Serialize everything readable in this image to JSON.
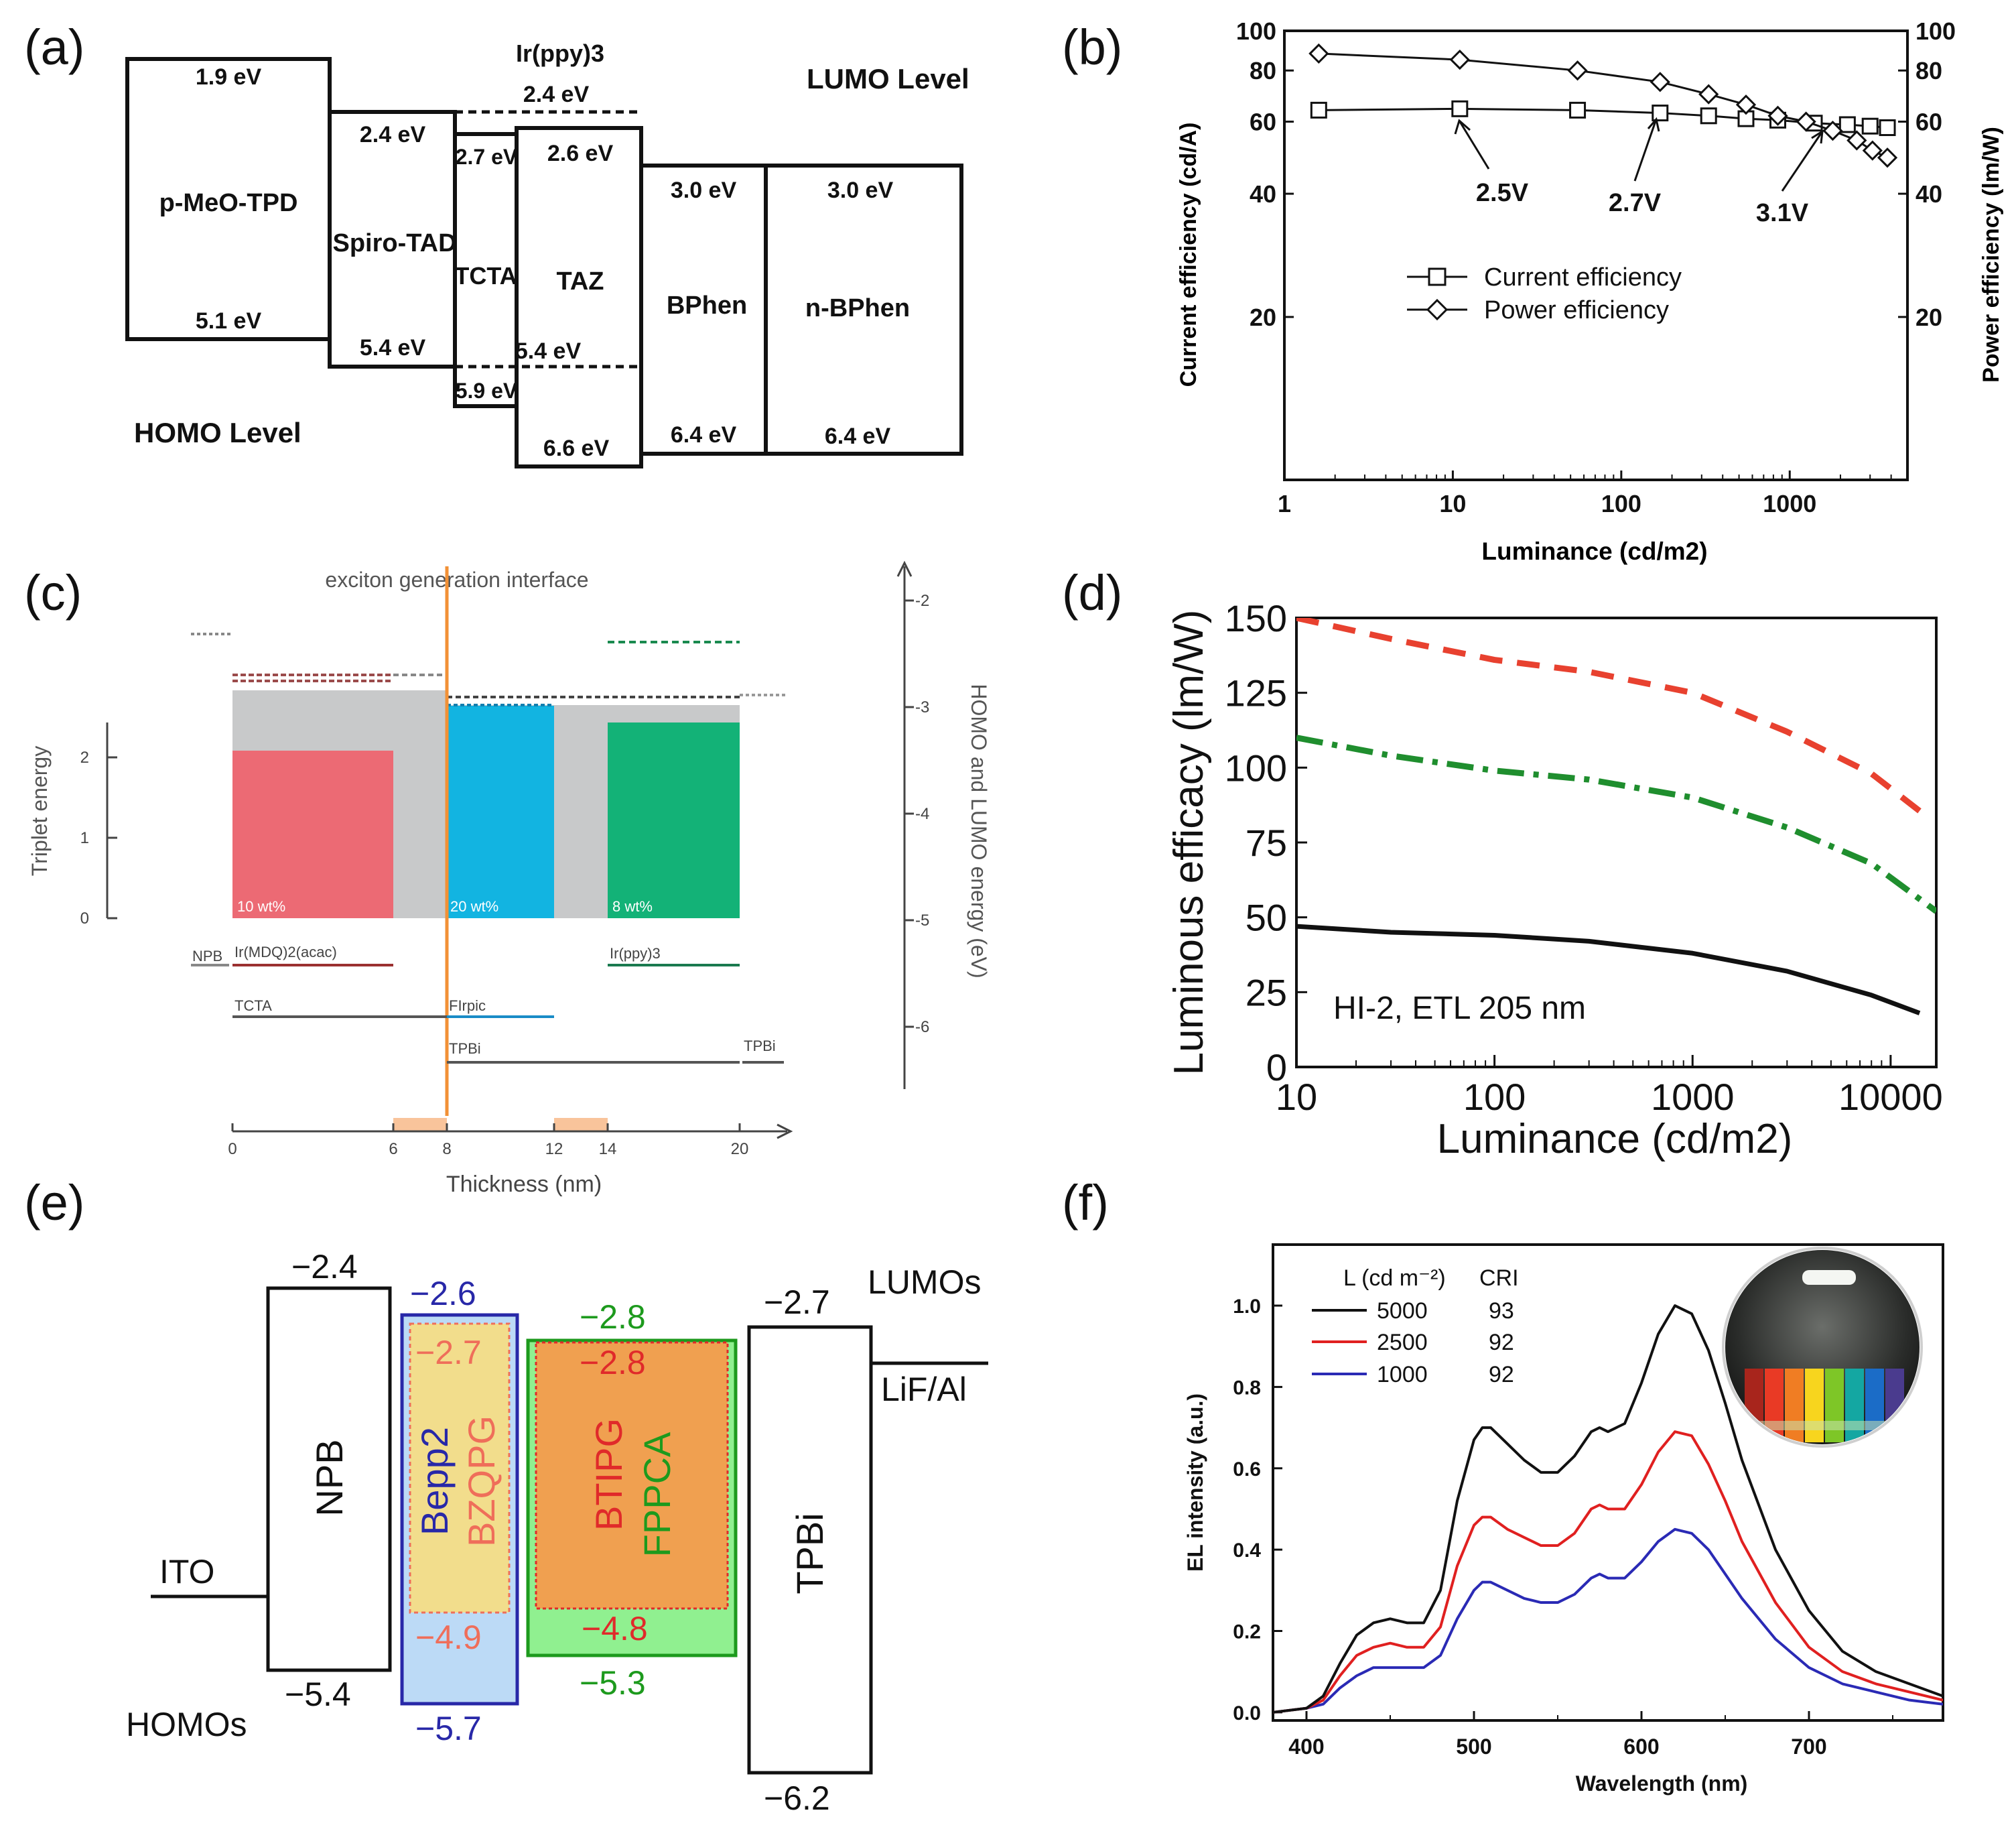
{
  "figure": {
    "panel_labels": [
      "(a)",
      "(b)",
      "(c)",
      "(d)",
      "(e)",
      "(f)"
    ]
  },
  "chart_data": [
    {
      "panel": "(a)",
      "type": "energy-level-diagram",
      "lumo_title": "LUMO Level",
      "homo_title": "HOMO Level",
      "layers": [
        {
          "name": "p-MeO-TPD",
          "lumo": "1.9 eV",
          "homo": "5.1 eV"
        },
        {
          "name": "Spiro-TAD",
          "lumo": "2.4 eV",
          "homo": "5.4 eV"
        },
        {
          "name": "TCTA",
          "lumo": "2.7 eV",
          "homo": "5.9 eV"
        },
        {
          "name": "TAZ",
          "lumo": "2.6 eV",
          "homo": "6.6 eV"
        },
        {
          "name": "BPhen",
          "lumo": "3.0 eV",
          "homo": "6.4 eV"
        },
        {
          "name": "n-BPhen",
          "lumo": "3.0 eV",
          "homo": "6.4 eV"
        }
      ],
      "dopant": {
        "name": "Ir(ppy)3",
        "lumo": "2.4 eV",
        "homo": "5.4 eV"
      }
    },
    {
      "panel": "(b)",
      "type": "line",
      "xscale": "log",
      "xlabel": "Luminance (cd/m2)",
      "ylabel_left": "Current efficiency (cd/A)",
      "ylabel_right": "Power efficiency (lm/W)",
      "xlim": [
        1,
        5000
      ],
      "ylim": [
        8,
        100
      ],
      "xticks": [
        1,
        10,
        100,
        1000
      ],
      "yticks": [
        20,
        40,
        60,
        80,
        100
      ],
      "series": [
        {
          "name": "Current efficiency",
          "marker": "square",
          "x": [
            1.6,
            11,
            55,
            170,
            330,
            550,
            850,
            1400,
            2200,
            3000,
            3800
          ],
          "y": [
            64,
            64.5,
            64,
            63,
            62,
            61,
            60.5,
            59.5,
            59,
            58.5,
            58
          ]
        },
        {
          "name": "Power efficiency",
          "marker": "diamond",
          "x": [
            1.6,
            11,
            55,
            170,
            330,
            550,
            850,
            1250,
            1800,
            2500,
            3100,
            3800
          ],
          "y": [
            88,
            85,
            80,
            75,
            70,
            66,
            62,
            60,
            57,
            54,
            51,
            49
          ]
        }
      ],
      "annotations": [
        "2.5V",
        "2.7V",
        "3.1V"
      ]
    },
    {
      "panel": "(c)",
      "type": "energy-level-diagram",
      "title": "exciton generation interface",
      "xlabel": "Thickness (nm)",
      "ylabel_left": "Triplet energy",
      "ylabel_right": "HOMO and LUMO energy (eV)",
      "xticks": [
        0,
        6,
        8,
        12,
        14,
        20
      ],
      "yticks_left": [
        0,
        1,
        2
      ],
      "yticks_right": [
        -2,
        -3,
        -4,
        -5,
        -6
      ],
      "blocks": [
        {
          "label": "10 wt%",
          "from": 0,
          "to": 6,
          "top": 2.06,
          "color": "#ec6a74"
        },
        {
          "label": "20 wt%",
          "from": 8,
          "to": 12,
          "top": 2.6,
          "color": "#12b4e1"
        },
        {
          "label": "8 wt%",
          "from": 14,
          "to": 20,
          "top": 2.42,
          "color": "#13b277"
        }
      ],
      "materials": [
        "NPB",
        "Ir(MDQ)2(acac)",
        "Ir(ppy)3",
        "TCTA",
        "FIrpic",
        "TPBi",
        "TPBi"
      ]
    },
    {
      "panel": "(d)",
      "type": "line",
      "xscale": "log",
      "xlabel": "Luminance (cd/m2)",
      "ylabel": "Luminous efficacy (lm/W)",
      "xlim": [
        10,
        17000
      ],
      "ylim": [
        0,
        150
      ],
      "xticks": [
        10,
        100,
        1000,
        10000
      ],
      "yticks": [
        0,
        25,
        50,
        75,
        100,
        125,
        150
      ],
      "annotation": "HI-2, ETL 205 nm",
      "series": [
        {
          "name": "red dashed",
          "color": "#e8412f",
          "x": [
            10,
            30,
            100,
            300,
            1000,
            3000,
            8000,
            15000
          ],
          "y": [
            150,
            143,
            136,
            132,
            125,
            112,
            98,
            84
          ]
        },
        {
          "name": "green dash-dot",
          "color": "#1f8e2e",
          "x": [
            10,
            30,
            100,
            300,
            1000,
            3000,
            8000,
            17000
          ],
          "y": [
            110,
            104,
            99,
            96,
            90,
            80,
            68,
            52
          ]
        },
        {
          "name": "black solid",
          "color": "#111111",
          "x": [
            10,
            30,
            100,
            300,
            1000,
            3000,
            8000,
            14000
          ],
          "y": [
            47,
            45,
            44,
            42,
            38,
            32,
            24,
            18
          ]
        }
      ]
    },
    {
      "panel": "(e)",
      "type": "energy-level-diagram",
      "lumo_title": "LUMOs",
      "homo_title": "HOMOs",
      "electrodes": [
        "ITO",
        "LiF/Al"
      ],
      "layers": [
        {
          "name": "NPB",
          "lumo": "−2.4",
          "homo": "−5.4"
        },
        {
          "name": "Bepp2",
          "lumo": "−2.6",
          "homo": "−5.7"
        },
        {
          "name": "BZQPG",
          "lumo": "−2.7",
          "homo": "−4.9"
        },
        {
          "name": "FPPCA",
          "lumo": "−2.8",
          "homo": "−5.3"
        },
        {
          "name": "BTIPG",
          "lumo": "−2.8",
          "homo": "−4.8"
        },
        {
          "name": "TPBi",
          "lumo": "−2.7",
          "homo": "−6.2"
        }
      ]
    },
    {
      "panel": "(f)",
      "type": "line",
      "xlabel": "Wavelength (nm)",
      "ylabel": "EL intensity (a.u.)",
      "xlim": [
        380,
        780
      ],
      "ylim": [
        -0.02,
        1.15
      ],
      "xticks": [
        400,
        500,
        600,
        700
      ],
      "yticks": [
        0.0,
        0.2,
        0.4,
        0.6,
        0.8,
        1.0
      ],
      "legend_header": [
        "L (cd m⁻²)",
        "CRI"
      ],
      "x": [
        380,
        400,
        410,
        420,
        430,
        440,
        450,
        460,
        470,
        480,
        490,
        500,
        505,
        510,
        520,
        530,
        540,
        550,
        560,
        570,
        575,
        580,
        590,
        600,
        610,
        620,
        630,
        640,
        650,
        660,
        680,
        700,
        720,
        740,
        760,
        780
      ],
      "series": [
        {
          "name": "5000",
          "cri": "93",
          "color": "#111111",
          "values": [
            0.0,
            0.01,
            0.04,
            0.12,
            0.19,
            0.22,
            0.23,
            0.22,
            0.22,
            0.3,
            0.52,
            0.67,
            0.7,
            0.7,
            0.66,
            0.62,
            0.59,
            0.59,
            0.63,
            0.69,
            0.7,
            0.69,
            0.71,
            0.81,
            0.93,
            1.0,
            0.98,
            0.89,
            0.76,
            0.62,
            0.4,
            0.25,
            0.15,
            0.1,
            0.07,
            0.04
          ]
        },
        {
          "name": "2500",
          "cri": "92",
          "color": "#e02020",
          "values": [
            0.0,
            0.01,
            0.03,
            0.09,
            0.14,
            0.16,
            0.17,
            0.16,
            0.16,
            0.21,
            0.36,
            0.46,
            0.48,
            0.48,
            0.45,
            0.43,
            0.41,
            0.41,
            0.44,
            0.5,
            0.51,
            0.5,
            0.5,
            0.56,
            0.64,
            0.69,
            0.68,
            0.61,
            0.52,
            0.42,
            0.27,
            0.16,
            0.1,
            0.07,
            0.05,
            0.03
          ]
        },
        {
          "name": "1000",
          "cri": "92",
          "color": "#2a2ab5",
          "values": [
            0.0,
            0.01,
            0.02,
            0.06,
            0.09,
            0.11,
            0.11,
            0.11,
            0.11,
            0.14,
            0.23,
            0.3,
            0.32,
            0.32,
            0.3,
            0.28,
            0.27,
            0.27,
            0.29,
            0.33,
            0.34,
            0.33,
            0.33,
            0.37,
            0.42,
            0.45,
            0.44,
            0.4,
            0.34,
            0.28,
            0.18,
            0.11,
            0.07,
            0.05,
            0.03,
            0.02
          ]
        }
      ]
    }
  ]
}
